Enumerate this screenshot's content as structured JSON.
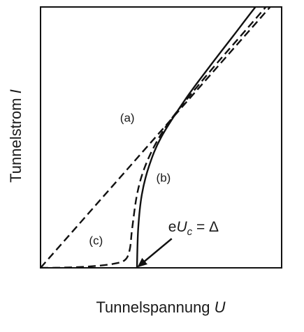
{
  "chart_data": {
    "type": "line",
    "title": "",
    "xlabel": "Tunnelspannung",
    "xlabel_symbol": "U",
    "ylabel": "Tunnelstrom",
    "ylabel_symbol": "I",
    "xlim": [
      0,
      10
    ],
    "ylim": [
      0,
      10
    ],
    "grid": false,
    "series": [
      {
        "name": "(a)",
        "style": "dashed",
        "x": [
          0,
          10
        ],
        "y": [
          0,
          10.5
        ]
      },
      {
        "name": "(b)",
        "style": "solid",
        "x": [
          4.0,
          4.05,
          4.2,
          4.5,
          5.0,
          6.0,
          7.0,
          8.0,
          9.0,
          10.0
        ],
        "y": [
          0,
          1.5,
          2.8,
          3.9,
          5.0,
          6.45,
          7.7,
          8.9,
          10.1,
          11.2
        ]
      },
      {
        "name": "(c)",
        "style": "dashed",
        "x": [
          0,
          1.0,
          2.0,
          3.0,
          3.5,
          3.7,
          3.8,
          4.0,
          4.3,
          4.8,
          5.5,
          7.0,
          8.5,
          10.0
        ],
        "y": [
          0,
          0.01,
          0.05,
          0.15,
          0.3,
          0.7,
          1.5,
          2.8,
          3.8,
          4.8,
          5.8,
          7.5,
          9.1,
          10.7
        ]
      }
    ],
    "annotations": [
      {
        "text": "(a)",
        "x": 3.6,
        "y": 5.6
      },
      {
        "text": "(b)",
        "x": 5.1,
        "y": 3.3
      },
      {
        "text": "(c)",
        "x": 2.3,
        "y": 0.9
      },
      {
        "text_prefix": "e",
        "text_symbol": "U",
        "text_subscript": "c",
        "text_suffix": " = Δ",
        "x": 5.5,
        "y": 1.6,
        "arrow_to": [
          4.0,
          0
        ]
      }
    ]
  }
}
